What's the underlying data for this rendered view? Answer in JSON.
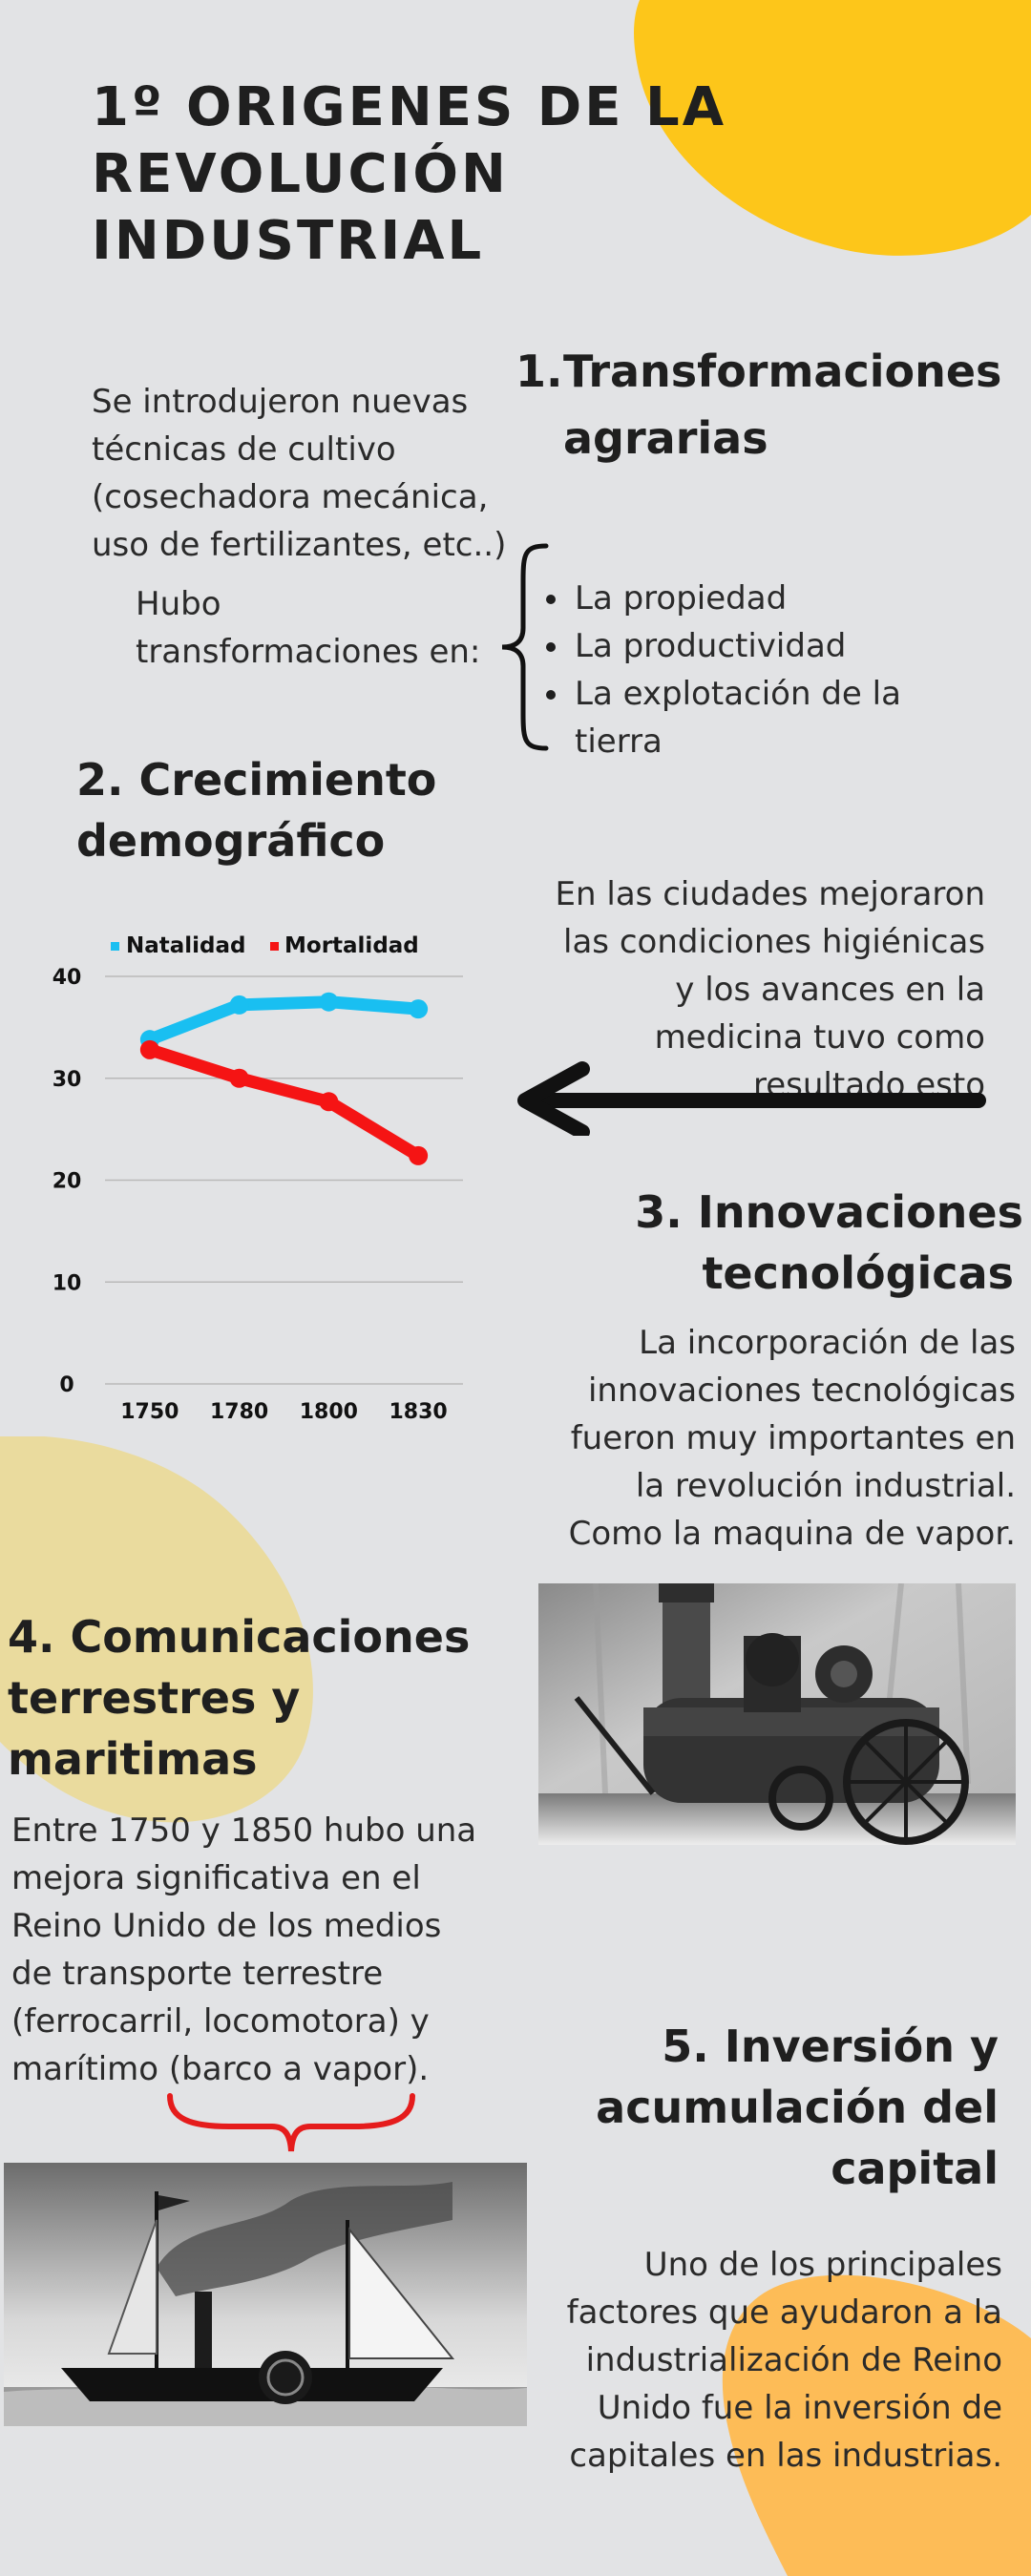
{
  "title": "1º ORIGENES DE LA REVOLUCIÓN INDUSTRIAL",
  "section1": {
    "number": "1.",
    "heading_line1": "Transformaciones",
    "heading_line2": "agrarias",
    "intro": "Se introdujeron nuevas técnicas de cultivo (cosechadora mecánica, uso de fertilizantes, etc..)",
    "lead_line1": "Hubo",
    "lead_line2": "transformaciones en:",
    "items": [
      "La propiedad",
      "La productividad",
      "La explotación de la tierra"
    ]
  },
  "section2": {
    "heading_line1": "2. Crecimiento",
    "heading_line2": "demográfico",
    "note": "En las ciudades mejoraron las condiciones higiénicas y los avances en la medicina tuvo como resultado esto"
  },
  "section3": {
    "heading_line1": "3. Innovaciones",
    "heading_line2": "tecnológicas",
    "text": "La incorporación de las innovaciones tecnológicas fueron muy importantes en la revolución industrial. Como la maquina de vapor."
  },
  "section4": {
    "heading_line1": "4. Comunicaciones",
    "heading_line2": "terrestres y",
    "heading_line3": "maritimas",
    "text": "Entre 1750 y 1850 hubo una mejora significativa en el Reino Unido de los medios de transporte terrestre (ferrocarril, locomotora) y marítimo (barco a vapor)."
  },
  "section5": {
    "heading_line1": "5. Inversión y",
    "heading_line2": "acumulación del",
    "heading_line3": "capital",
    "text": "Uno de los principales factores que ayudaron a la industrialización de Reino Unido fue la inversión de capitales en las industrias."
  },
  "colors": {
    "yellow": "#fdc61a",
    "pale_yellow": "#eadb9e",
    "orange": "#fdbc57",
    "natalidad": "#19bff1",
    "mortalidad": "#f51414",
    "brace_red": "#e51c1c"
  },
  "chart_data": {
    "type": "line",
    "categories": [
      "1750",
      "1780",
      "1800",
      "1830"
    ],
    "series": [
      {
        "name": "Natalidad",
        "values": [
          33.8,
          37.2,
          37.5,
          36.8
        ],
        "color": "#19bff1"
      },
      {
        "name": "Mortalidad",
        "values": [
          32.8,
          30.0,
          27.7,
          22.4
        ],
        "color": "#f51414"
      }
    ],
    "yticks": [
      "0",
      "10",
      "20",
      "30",
      "40"
    ],
    "ylim": [
      0,
      40
    ],
    "grid": true,
    "legend": "top"
  }
}
